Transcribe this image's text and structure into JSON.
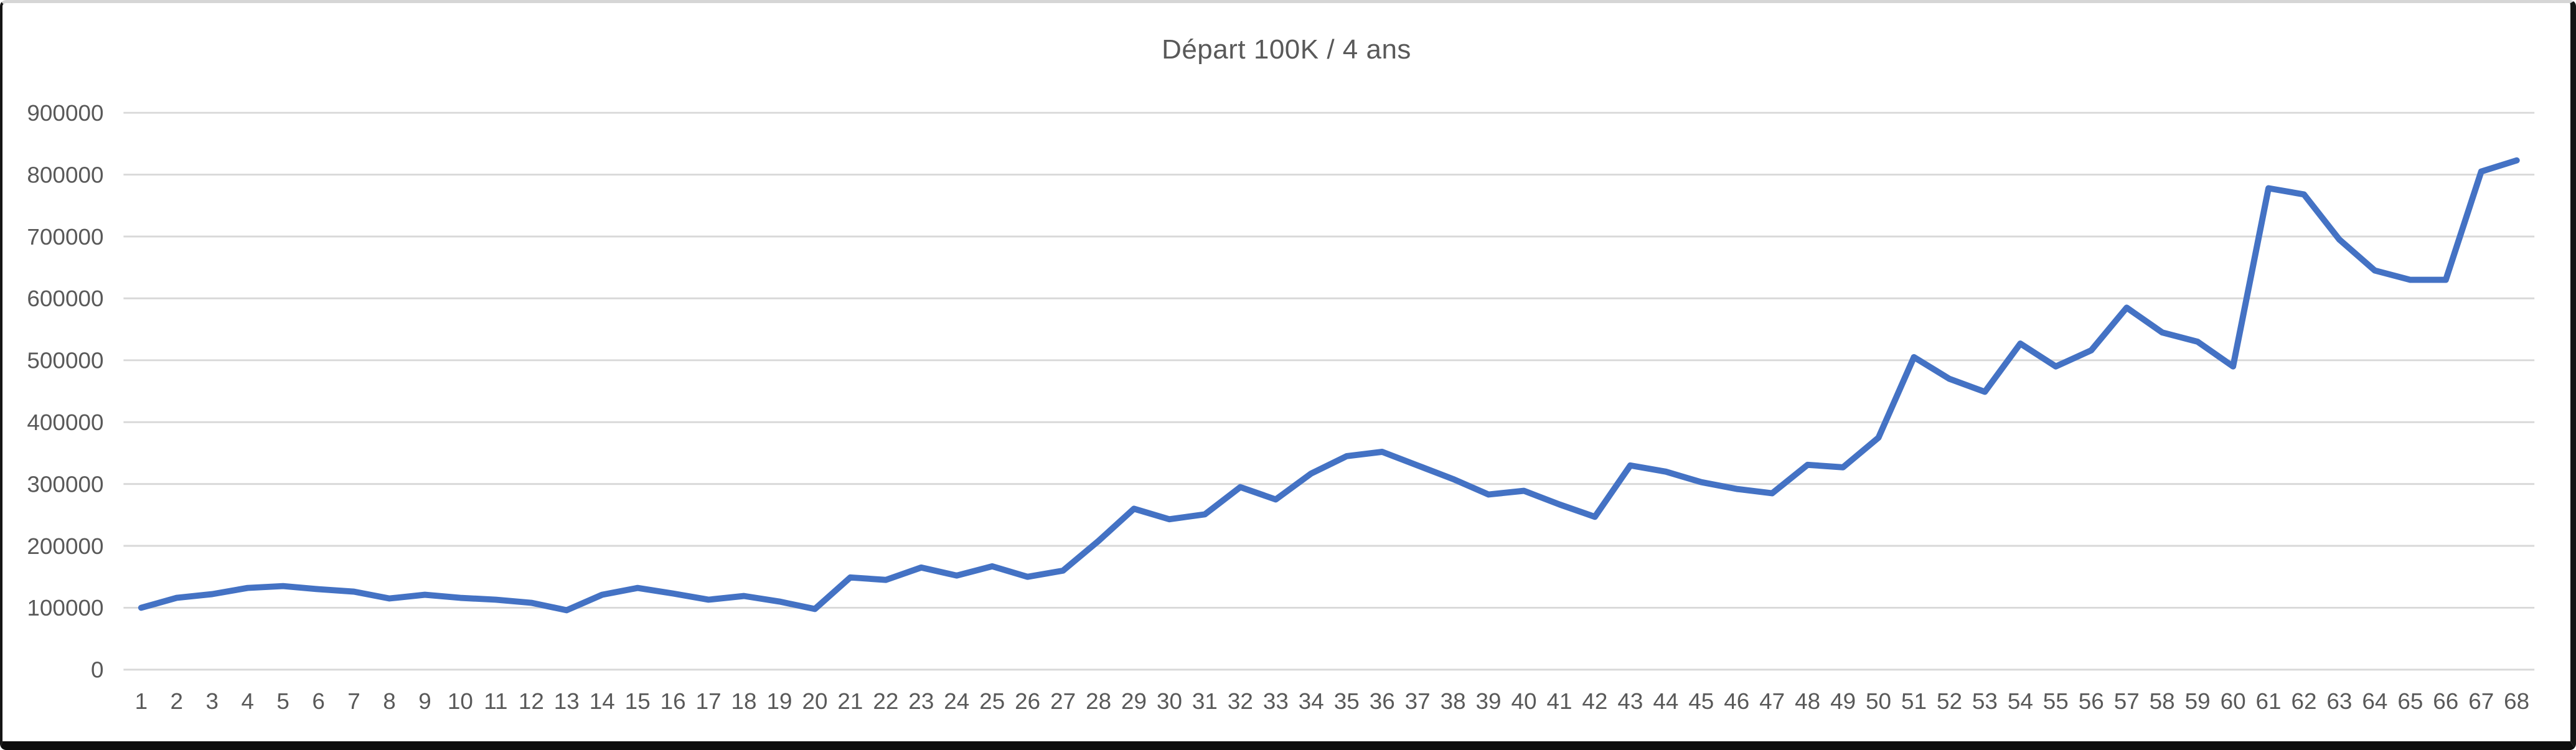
{
  "title": "Départ 100K / 4 ans",
  "chart_data": {
    "type": "line",
    "title": "Départ 100K / 4 ans",
    "xlabel": "",
    "ylabel": "",
    "legend_position": "none",
    "grid": true,
    "ylim": [
      0,
      900000
    ],
    "y_ticks": [
      0,
      100000,
      200000,
      300000,
      400000,
      500000,
      600000,
      700000,
      800000,
      900000
    ],
    "categories": [
      1,
      2,
      3,
      4,
      5,
      6,
      7,
      8,
      9,
      10,
      11,
      12,
      13,
      14,
      15,
      16,
      17,
      18,
      19,
      20,
      21,
      22,
      23,
      24,
      25,
      26,
      27,
      28,
      29,
      30,
      31,
      32,
      33,
      34,
      35,
      36,
      37,
      38,
      39,
      40,
      41,
      42,
      43,
      44,
      45,
      46,
      47,
      48,
      49,
      50,
      51,
      52,
      53,
      54,
      55,
      56,
      57,
      58,
      59,
      60,
      61,
      62,
      63,
      64,
      65,
      66,
      67,
      68
    ],
    "values": [
      100000,
      116000,
      122000,
      132000,
      135000,
      130000,
      126000,
      115000,
      121000,
      116000,
      113000,
      108000,
      96000,
      121000,
      132000,
      123000,
      113000,
      119000,
      110000,
      98000,
      149000,
      145000,
      165000,
      152000,
      167000,
      150000,
      160000,
      208000,
      260000,
      243000,
      251000,
      295000,
      275000,
      317000,
      345000,
      352000,
      330000,
      308000,
      283000,
      289000,
      267000,
      247000,
      330000,
      320000,
      303000,
      292000,
      285000,
      331000,
      327000,
      375000,
      505000,
      470000,
      449000,
      527000,
      490000,
      516000,
      585000,
      545000,
      530000,
      490000,
      778000,
      768000,
      695000,
      645000,
      630000,
      630000,
      805000,
      823000
    ],
    "colors": {
      "series_line": "#4472C4",
      "gridline": "#D9D9D9",
      "axis_labels": "#595959",
      "title": "#595959"
    }
  }
}
